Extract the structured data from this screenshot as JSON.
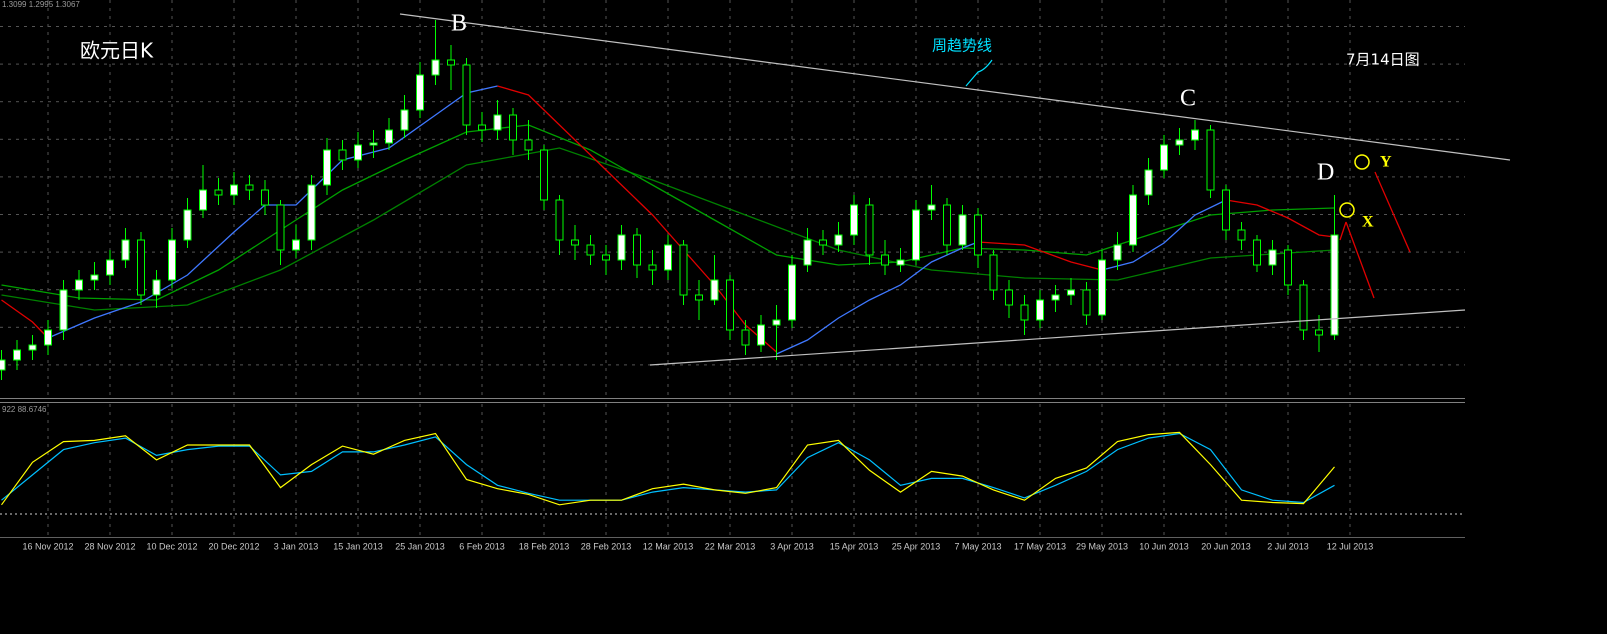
{
  "header": "1.3099 1.2995 1.3067",
  "chart_data": {
    "type": "candlestick",
    "title": "欧元日K",
    "note": "7月14日图",
    "trendline_label": "周趋势线",
    "point_labels": [
      "B",
      "C",
      "D",
      "X",
      "Y"
    ],
    "categories": [
      null,
      null,
      null,
      "16 Nov 2012",
      null,
      null,
      null,
      "28 Nov 2012",
      null,
      null,
      null,
      "10 Dec 2012",
      null,
      null,
      null,
      "20 Dec 2012",
      null,
      null,
      null,
      "3 Jan 2013",
      null,
      null,
      null,
      "15 Jan 2013",
      null,
      null,
      null,
      "25 Jan 2013",
      null,
      null,
      null,
      "6 Feb 2013",
      null,
      null,
      null,
      "18 Feb 2013",
      null,
      null,
      null,
      "28 Feb 2013",
      null,
      null,
      null,
      "12 Mar 2013",
      null,
      null,
      null,
      "22 Mar 2013",
      null,
      null,
      null,
      "3 Apr 2013",
      null,
      null,
      null,
      "15 Apr 2013",
      null,
      null,
      null,
      "25 Apr 2013",
      null,
      null,
      null,
      "7 May 2013",
      null,
      null,
      null,
      "17 May 2013",
      null,
      null,
      null,
      "29 May 2013",
      null,
      null,
      null,
      "10 Jun 2013",
      null,
      null,
      null,
      "20 Jun 2013",
      null,
      null,
      null,
      "2 Jul 2013",
      null,
      null,
      null,
      "12 Jul 2013"
    ],
    "open": [
      1.269,
      1.272,
      1.275,
      1.2765,
      1.281,
      1.293,
      1.296,
      1.2975,
      1.302,
      1.308,
      1.2915,
      1.296,
      1.308,
      1.317,
      1.323,
      1.3215,
      1.3245,
      1.323,
      1.3185,
      1.305,
      1.308,
      1.3245,
      1.335,
      1.332,
      1.3365,
      1.3371,
      1.341,
      1.347,
      1.3575,
      1.362,
      1.3605,
      1.3425,
      1.341,
      1.3455,
      1.338,
      1.335,
      1.32,
      1.308,
      1.3065,
      1.3035,
      1.302,
      1.3095,
      1.3005,
      1.299,
      1.3065,
      1.2915,
      1.29,
      1.296,
      1.281,
      1.2765,
      1.2825,
      1.284,
      1.3005,
      1.308,
      1.3065,
      1.3095,
      1.3185,
      1.3035,
      1.3005,
      1.302,
      1.317,
      1.3185,
      1.3065,
      1.3155,
      1.3035,
      1.293,
      1.2885,
      1.284,
      1.29,
      1.2915,
      1.293,
      1.2855,
      1.302,
      1.3065,
      1.3215,
      1.329,
      1.3365,
      1.338,
      1.341,
      1.323,
      1.311,
      1.308,
      1.3005,
      1.305,
      1.2945,
      1.281,
      1.2795,
      null
    ],
    "high": [
      1.275,
      1.278,
      1.2795,
      1.284,
      1.296,
      1.299,
      1.3014,
      1.305,
      1.3116,
      1.3104,
      1.299,
      1.3116,
      1.3206,
      1.3305,
      1.3266,
      1.3284,
      1.3275,
      1.326,
      1.32,
      1.3125,
      1.3275,
      1.3386,
      1.338,
      1.3404,
      1.341,
      1.3446,
      1.3515,
      1.3614,
      1.374,
      1.3665,
      1.3626,
      1.3464,
      1.35,
      1.3476,
      1.344,
      1.3365,
      1.3215,
      1.3125,
      1.3095,
      1.3065,
      1.3125,
      1.3116,
      1.305,
      1.3095,
      1.308,
      1.296,
      1.3035,
      1.2975,
      1.284,
      1.2855,
      1.2885,
      1.3035,
      1.3116,
      1.311,
      1.3134,
      1.3215,
      1.3206,
      1.308,
      1.3056,
      1.32,
      1.3245,
      1.3206,
      1.3185,
      1.3176,
      1.305,
      1.296,
      1.2915,
      1.293,
      1.2945,
      1.2966,
      1.2954,
      1.305,
      1.3104,
      1.3245,
      1.3326,
      1.3395,
      1.3416,
      1.344,
      1.3425,
      1.3245,
      1.3134,
      1.3095,
      1.308,
      1.3065,
      1.296,
      1.2855,
      1.3215,
      null
    ],
    "low": [
      1.266,
      1.269,
      1.272,
      1.2735,
      1.278,
      1.29,
      1.293,
      1.2945,
      1.2996,
      1.2885,
      1.2876,
      1.2936,
      1.3056,
      1.3146,
      1.3185,
      1.3185,
      1.32,
      1.3155,
      1.3005,
      1.3026,
      1.305,
      1.3215,
      1.329,
      1.3296,
      1.3326,
      1.335,
      1.3386,
      1.3446,
      1.3545,
      1.353,
      1.3395,
      1.3374,
      1.338,
      1.3335,
      1.332,
      1.317,
      1.3035,
      1.302,
      1.3005,
      1.2975,
      1.299,
      1.2966,
      1.2945,
      1.296,
      1.2885,
      1.284,
      1.2885,
      1.278,
      1.2735,
      1.2744,
      1.272,
      1.2816,
      1.2984,
      1.3035,
      1.3044,
      1.3065,
      1.3005,
      1.2975,
      1.2984,
      1.3005,
      1.314,
      1.3035,
      1.305,
      1.2996,
      1.29,
      1.2846,
      1.2795,
      1.2816,
      1.2864,
      1.2885,
      1.2825,
      1.284,
      1.299,
      1.3044,
      1.3185,
      1.3266,
      1.3335,
      1.335,
      1.3206,
      1.308,
      1.305,
      1.2984,
      1.2975,
      1.2915,
      1.278,
      1.2744,
      1.278,
      null
    ],
    "close": [
      1.272,
      1.275,
      1.2765,
      1.281,
      1.293,
      1.296,
      1.2975,
      1.302,
      1.308,
      1.2915,
      1.296,
      1.308,
      1.317,
      1.323,
      1.3215,
      1.3245,
      1.323,
      1.3185,
      1.305,
      1.308,
      1.3245,
      1.335,
      1.332,
      1.3365,
      1.3371,
      1.341,
      1.347,
      1.3575,
      1.362,
      1.3605,
      1.3425,
      1.341,
      1.3455,
      1.338,
      1.335,
      1.32,
      1.308,
      1.3065,
      1.3035,
      1.302,
      1.3095,
      1.3005,
      1.299,
      1.3065,
      1.2915,
      1.29,
      1.296,
      1.281,
      1.2765,
      1.2825,
      1.284,
      1.3005,
      1.308,
      1.3065,
      1.3095,
      1.3185,
      1.3035,
      1.3005,
      1.302,
      1.317,
      1.3185,
      1.3065,
      1.3155,
      1.3035,
      1.293,
      1.2885,
      1.284,
      1.29,
      1.2915,
      1.293,
      1.2855,
      1.302,
      1.3065,
      1.3215,
      1.329,
      1.3365,
      1.338,
      1.341,
      1.323,
      1.311,
      1.308,
      1.3005,
      1.305,
      1.2945,
      1.281,
      1.2795,
      1.3095,
      null
    ],
    "ylim": [
      1.26,
      1.38
    ],
    "up_color": "#ffffff",
    "down_color": "#000000",
    "wick_color": "#00ff00",
    "grid": true,
    "series": [
      {
        "color": "#008000",
        "x": [
          0,
          6,
          12,
          18,
          24,
          30,
          36,
          42,
          48,
          54,
          60,
          66,
          72,
          78,
          84,
          86
        ],
        "values": [
          1.2915,
          1.287,
          1.2885,
          1.299,
          1.314,
          1.3305,
          1.3356,
          1.326,
          1.3155,
          1.305,
          1.299,
          1.2966,
          1.296,
          1.3026,
          1.3044,
          1.305
        ]
      },
      {
        "color": "#00a000",
        "x": [
          0,
          5,
          10,
          14,
          18,
          22,
          26,
          30,
          34,
          38,
          42,
          46,
          50,
          54,
          58,
          62,
          66,
          70,
          74,
          78,
          82,
          86
        ],
        "values": [
          1.2945,
          1.2906,
          1.29,
          1.299,
          1.311,
          1.323,
          1.332,
          1.3404,
          1.3425,
          1.335,
          1.3245,
          1.314,
          1.3035,
          1.3005,
          1.3014,
          1.3056,
          1.305,
          1.3035,
          1.3095,
          1.3155,
          1.317,
          1.3176
        ]
      },
      {
        "color": "#3f78ff",
        "x": [
          3,
          6,
          9,
          12,
          15,
          17,
          19,
          22,
          25,
          28,
          30,
          32,
          41,
          50,
          52,
          54,
          56,
          58,
          60,
          62,
          63,
          67,
          71,
          73,
          75,
          77,
          79
        ],
        "values": [
          1.2786,
          1.2846,
          1.2894,
          1.2975,
          1.3104,
          1.3185,
          1.3185,
          1.332,
          1.3356,
          1.3455,
          1.3521,
          1.3542,
          null,
          1.2738,
          1.278,
          1.2846,
          1.29,
          1.2945,
          1.3014,
          1.3056,
          1.3074,
          null,
          1.299,
          1.3014,
          1.3071,
          1.3155,
          1.32
        ]
      },
      {
        "color": "#e00000",
        "x": [
          0,
          2,
          3,
          17,
          32,
          34,
          36,
          38,
          40,
          42,
          44,
          46,
          48,
          50,
          56,
          63,
          66,
          69,
          71,
          75,
          79,
          81,
          83,
          85,
          86
        ],
        "values": [
          1.29,
          1.2834,
          1.2786,
          null,
          1.3542,
          1.3515,
          1.3425,
          1.3335,
          1.3245,
          1.3155,
          1.305,
          1.2945,
          1.2825,
          1.2744,
          null,
          1.3074,
          1.3065,
          1.3014,
          1.299,
          null,
          1.32,
          1.3185,
          1.3146,
          1.3095,
          1.3089
        ]
      }
    ],
    "oscillator": {
      "header": "922 88.6746",
      "ylim": [
        0,
        100
      ],
      "levels": [
        20
      ],
      "x": [
        0,
        2,
        4,
        6,
        8,
        10,
        12,
        14,
        16,
        18,
        20,
        22,
        24,
        26,
        28,
        30,
        32,
        34,
        36,
        38,
        40,
        42,
        44,
        46,
        48,
        50,
        52,
        54,
        56,
        58,
        60,
        62,
        64,
        66,
        68,
        70,
        72,
        74,
        76,
        78,
        80,
        82,
        84,
        86
      ],
      "series": [
        {
          "color": "#00bfff",
          "values": [
            32,
            54,
            76,
            82,
            86,
            71,
            76,
            79,
            79,
            54,
            57,
            74,
            74,
            80,
            87,
            63,
            45,
            38,
            32,
            32,
            32,
            39,
            43,
            41,
            39,
            41,
            69,
            82,
            67,
            45,
            51,
            51,
            43,
            34,
            45,
            57,
            76,
            86,
            90,
            76,
            41,
            32,
            30,
            45
          ]
        },
        {
          "color": "#ffff00",
          "values": [
            28,
            65,
            83,
            84,
            88,
            67,
            80,
            80,
            80,
            43,
            63,
            79,
            72,
            84,
            90,
            50,
            42,
            37,
            28,
            32,
            32,
            42,
            46,
            41,
            38,
            43,
            80,
            84,
            58,
            39,
            57,
            53,
            41,
            32,
            51,
            60,
            83,
            89,
            91,
            63,
            32,
            30,
            29,
            61
          ]
        }
      ]
    }
  }
}
